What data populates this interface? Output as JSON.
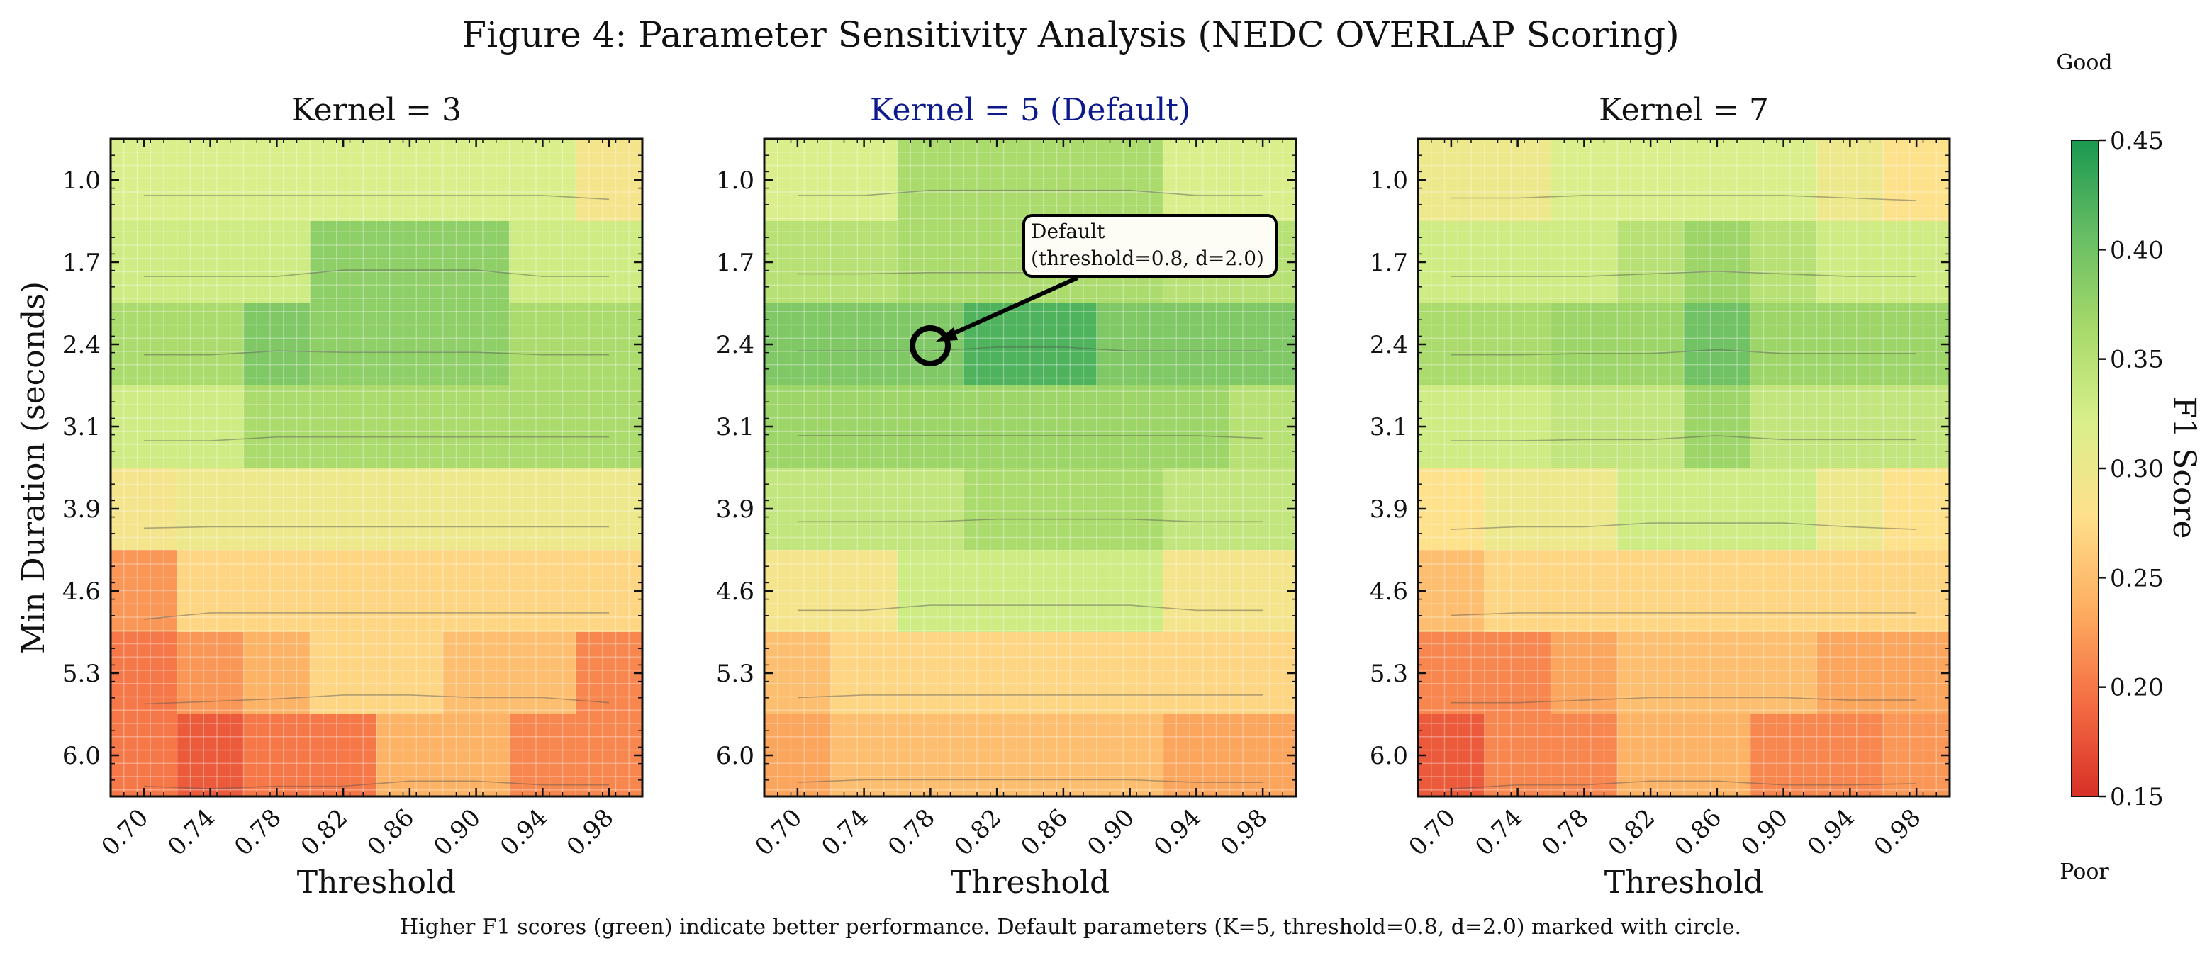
{
  "figure": {
    "title": "Figure 4: Parameter Sensitivity Analysis (NEDC OVERLAP Scoring)",
    "caption": "Higher F1 scores (green) indicate better performance. Default parameters (K=5, threshold=0.8, d=2.0) marked with circle."
  },
  "chart_data": {
    "type": "heatmap",
    "x_axis_label": "Threshold",
    "y_axis_label": "Min Duration (seconds)",
    "x_tick_labels": [
      "0.70",
      "0.74",
      "0.78",
      "0.82",
      "0.86",
      "0.90",
      "0.94",
      "0.98"
    ],
    "y_tick_labels": [
      "1.0",
      "1.7",
      "2.4",
      "3.1",
      "3.9",
      "4.6",
      "5.3",
      "6.0"
    ],
    "x_values": [
      0.7,
      0.74,
      0.78,
      0.82,
      0.86,
      0.9,
      0.94,
      0.98
    ],
    "y_values": [
      1.0,
      1.7,
      2.4,
      3.1,
      3.9,
      4.6,
      5.3,
      6.0
    ],
    "colorbar": {
      "label": "F1 Score",
      "range": [
        0.15,
        0.45
      ],
      "ticks": [
        "0.15",
        "0.20",
        "0.25",
        "0.30",
        "0.35",
        "0.40",
        "0.45"
      ],
      "top_label": "Good",
      "bottom_label": "Poor",
      "colormap": [
        "#d73027",
        "#f46d43",
        "#fdae61",
        "#fee08b",
        "#d9ef8b",
        "#a6d96a",
        "#66bd63",
        "#1a9850"
      ]
    },
    "panels": [
      {
        "title": "Kernel = 3",
        "title_color": "#111111",
        "values": [
          [
            0.32,
            0.32,
            0.32,
            0.32,
            0.32,
            0.32,
            0.32,
            0.29
          ],
          [
            0.33,
            0.33,
            0.33,
            0.38,
            0.38,
            0.38,
            0.33,
            0.33
          ],
          [
            0.36,
            0.36,
            0.39,
            0.38,
            0.38,
            0.38,
            0.36,
            0.36
          ],
          [
            0.33,
            0.33,
            0.36,
            0.36,
            0.36,
            0.36,
            0.36,
            0.36
          ],
          [
            0.29,
            0.3,
            0.3,
            0.3,
            0.3,
            0.3,
            0.3,
            0.3
          ],
          [
            0.22,
            0.27,
            0.27,
            0.27,
            0.27,
            0.27,
            0.27,
            0.27
          ],
          [
            0.2,
            0.22,
            0.24,
            0.27,
            0.27,
            0.25,
            0.25,
            0.21
          ],
          [
            0.2,
            0.18,
            0.2,
            0.2,
            0.24,
            0.24,
            0.21,
            0.21
          ]
        ]
      },
      {
        "title": "Kernel = 5 (Default)",
        "title_color": "#0d1a8c",
        "annotation": {
          "text_line1": "Default",
          "text_line2": "(threshold=0.8, d=2.0)",
          "x": 0.8,
          "y": 2.0
        },
        "values": [
          [
            0.32,
            0.32,
            0.36,
            0.36,
            0.36,
            0.36,
            0.32,
            0.32
          ],
          [
            0.35,
            0.35,
            0.36,
            0.36,
            0.36,
            0.36,
            0.35,
            0.35
          ],
          [
            0.39,
            0.39,
            0.39,
            0.42,
            0.42,
            0.39,
            0.39,
            0.39
          ],
          [
            0.37,
            0.37,
            0.37,
            0.37,
            0.37,
            0.37,
            0.37,
            0.35
          ],
          [
            0.34,
            0.34,
            0.34,
            0.36,
            0.36,
            0.36,
            0.34,
            0.34
          ],
          [
            0.29,
            0.29,
            0.33,
            0.33,
            0.33,
            0.33,
            0.29,
            0.29
          ],
          [
            0.25,
            0.27,
            0.27,
            0.27,
            0.27,
            0.27,
            0.27,
            0.27
          ],
          [
            0.23,
            0.25,
            0.25,
            0.25,
            0.25,
            0.25,
            0.23,
            0.23
          ]
        ]
      },
      {
        "title": "Kernel = 7",
        "title_color": "#111111",
        "values": [
          [
            0.3,
            0.3,
            0.32,
            0.32,
            0.32,
            0.32,
            0.3,
            0.28
          ],
          [
            0.33,
            0.33,
            0.33,
            0.35,
            0.37,
            0.35,
            0.33,
            0.33
          ],
          [
            0.36,
            0.36,
            0.37,
            0.37,
            0.4,
            0.37,
            0.37,
            0.37
          ],
          [
            0.33,
            0.33,
            0.34,
            0.34,
            0.37,
            0.34,
            0.34,
            0.34
          ],
          [
            0.28,
            0.3,
            0.3,
            0.33,
            0.33,
            0.33,
            0.3,
            0.28
          ],
          [
            0.25,
            0.27,
            0.27,
            0.27,
            0.27,
            0.27,
            0.27,
            0.27
          ],
          [
            0.21,
            0.21,
            0.23,
            0.25,
            0.25,
            0.25,
            0.23,
            0.23
          ],
          [
            0.18,
            0.21,
            0.21,
            0.24,
            0.24,
            0.21,
            0.21,
            0.22
          ]
        ]
      }
    ]
  }
}
